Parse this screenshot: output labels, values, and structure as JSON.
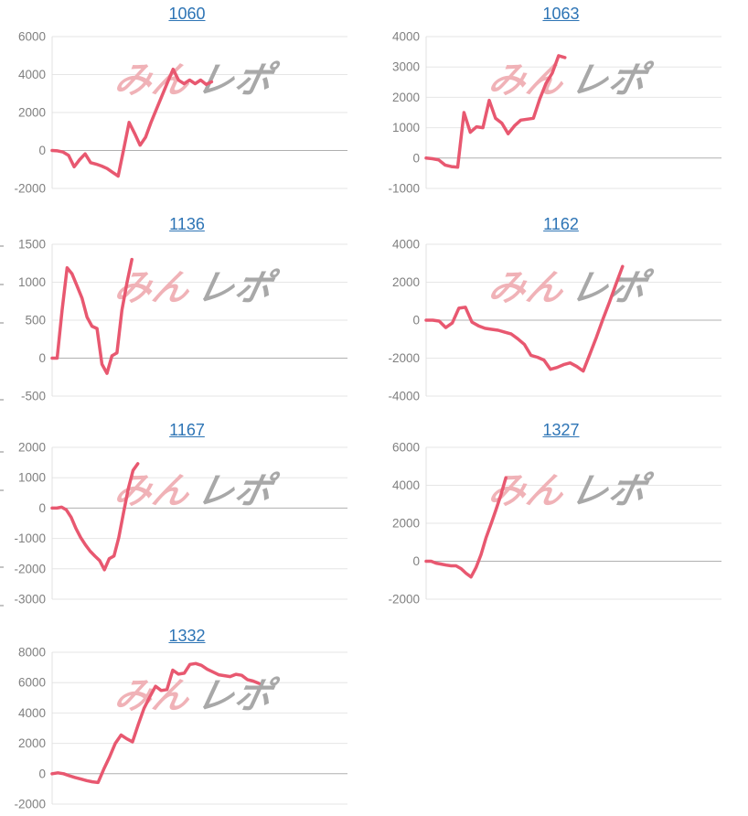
{
  "page": {
    "background": "#ffffff"
  },
  "watermark": {
    "pink_text": "みん",
    "gray_text": "レポ",
    "pink_color": "#f0b2b7",
    "gray_color": "#a8a8a8"
  },
  "colors": {
    "series_line": "#e85870",
    "title_link": "#2d74b5",
    "gridline": "#e6e6e6",
    "zero_line": "#b0b0b0",
    "axis_edge": "#e0e0e0",
    "tick_label": "#808080"
  },
  "chart_data": [
    {
      "type": "line",
      "title": "1060",
      "xlabel": "",
      "ylabel": "",
      "y_ticks": [
        6000,
        4000,
        2000,
        0,
        -2000
      ],
      "ylim": [
        -2000,
        6000
      ],
      "x_end_fraction": 0.54,
      "grid": "on",
      "legend": "none",
      "values": [
        0,
        -20,
        -80,
        -260,
        -860,
        -480,
        -180,
        -640,
        -720,
        -820,
        -950,
        -1150,
        -1350,
        50,
        1480,
        900,
        280,
        700,
        1500,
        2200,
        2900,
        3600,
        4280,
        3700,
        3520,
        3710,
        3520,
        3710,
        3480,
        3620
      ]
    },
    {
      "type": "line",
      "title": "1063",
      "xlabel": "",
      "ylabel": "",
      "y_ticks": [
        4000,
        3000,
        2000,
        1000,
        0,
        -1000
      ],
      "ylim": [
        -1000,
        4000
      ],
      "x_end_fraction": 0.47,
      "grid": "on",
      "legend": "none",
      "values": [
        0,
        -20,
        -60,
        -230,
        -280,
        -300,
        1500,
        850,
        1030,
        1000,
        1900,
        1310,
        1150,
        800,
        1060,
        1250,
        1280,
        1310,
        1940,
        2460,
        2800,
        3370,
        3310
      ]
    },
    {
      "type": "line",
      "title": "1136",
      "xlabel": "",
      "ylabel": "",
      "y_ticks": [
        1500,
        1000,
        500,
        0,
        -500
      ],
      "ylim": [
        -500,
        1500
      ],
      "x_end_fraction": 0.27,
      "grid": "on",
      "legend": "none",
      "values": [
        0,
        0,
        630,
        1190,
        1110,
        950,
        790,
        540,
        420,
        390,
        -80,
        -200,
        30,
        70,
        630,
        990,
        1300
      ]
    },
    {
      "type": "line",
      "title": "1162",
      "xlabel": "",
      "ylabel": "",
      "y_ticks": [
        4000,
        2000,
        0,
        -2000,
        -4000
      ],
      "ylim": [
        -4000,
        4000
      ],
      "x_end_fraction": 0.665,
      "grid": "on",
      "legend": "none",
      "values": [
        0,
        0,
        -50,
        -390,
        -150,
        630,
        680,
        -100,
        -300,
        -430,
        -480,
        -530,
        -630,
        -730,
        -980,
        -1270,
        -1850,
        -1950,
        -2100,
        -2590,
        -2490,
        -2340,
        -2250,
        -2440,
        -2680,
        -1800,
        -900,
        50,
        950,
        1900,
        2830
      ]
    },
    {
      "type": "line",
      "title": "1167",
      "xlabel": "",
      "ylabel": "",
      "y_ticks": [
        2000,
        1000,
        0,
        -1000,
        -2000,
        -3000
      ],
      "ylim": [
        -3000,
        2000
      ],
      "x_end_fraction": 0.29,
      "grid": "on",
      "legend": "none",
      "values": [
        0,
        0,
        30,
        -60,
        -300,
        -670,
        -970,
        -1210,
        -1420,
        -1580,
        -1730,
        -2030,
        -1670,
        -1575,
        -970,
        -150,
        640,
        1240,
        1460
      ]
    },
    {
      "type": "line",
      "title": "1327",
      "xlabel": "",
      "ylabel": "",
      "y_ticks": [
        6000,
        4000,
        2000,
        0,
        -2000
      ],
      "ylim": [
        -2000,
        6000
      ],
      "x_end_fraction": 0.27,
      "grid": "on",
      "legend": "none",
      "values": [
        0,
        0,
        -100,
        -150,
        -200,
        -240,
        -240,
        -390,
        -630,
        -830,
        -340,
        340,
        1220,
        1950,
        2700,
        3500,
        4400
      ]
    },
    {
      "type": "line",
      "title": "1332",
      "xlabel": "",
      "ylabel": "",
      "y_ticks": [
        8000,
        6000,
        4000,
        2000,
        0,
        -2000
      ],
      "ylim": [
        -2000,
        8000
      ],
      "x_end_fraction": 0.7,
      "grid": "on",
      "legend": "none",
      "values": [
        0,
        60,
        0,
        -130,
        -250,
        -350,
        -450,
        -530,
        -580,
        300,
        1100,
        2000,
        2550,
        2300,
        2100,
        3240,
        4310,
        5060,
        5760,
        5480,
        5540,
        6820,
        6560,
        6620,
        7200,
        7260,
        7140,
        6880,
        6700,
        6520,
        6460,
        6400,
        6550,
        6480,
        6200,
        6100,
        5950
      ]
    }
  ]
}
